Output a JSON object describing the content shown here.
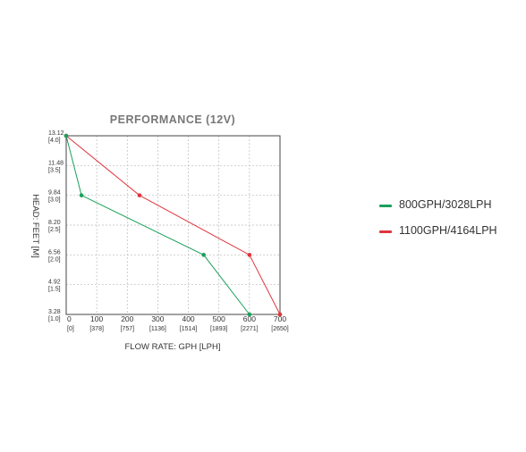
{
  "chart_data": {
    "type": "line",
    "title": "PERFORMANCE (12V)",
    "xlabel": "FLOW RATE: GPH [LPH]",
    "ylabel": "HEAD: FEET [M]",
    "xlim": [
      0,
      700
    ],
    "ylim": [
      3.28,
      13.12
    ],
    "x_ticks": [
      {
        "value": 0,
        "label": "0",
        "sub": "[0]"
      },
      {
        "value": 100,
        "label": "100",
        "sub": "[378]"
      },
      {
        "value": 200,
        "label": "200",
        "sub": "[757]"
      },
      {
        "value": 300,
        "label": "300",
        "sub": "[1136]"
      },
      {
        "value": 400,
        "label": "400",
        "sub": "[1514]"
      },
      {
        "value": 500,
        "label": "500",
        "sub": "[1893]"
      },
      {
        "value": 600,
        "label": "600",
        "sub": "[2271]"
      },
      {
        "value": 700,
        "label": "700",
        "sub": "[2650]"
      }
    ],
    "y_ticks": [
      {
        "value": 3.28,
        "label": "3.28",
        "sub": "[1.0]"
      },
      {
        "value": 4.92,
        "label": "4.92",
        "sub": "[1.5]"
      },
      {
        "value": 6.56,
        "label": "6.56",
        "sub": "[2.0]"
      },
      {
        "value": 8.2,
        "label": "8.20",
        "sub": "[2.5]"
      },
      {
        "value": 9.84,
        "label": "9.84",
        "sub": "[3.0]"
      },
      {
        "value": 11.48,
        "label": "11.48",
        "sub": "[3.5]"
      },
      {
        "value": 13.12,
        "label": "13.12",
        "sub": "[4.0]"
      }
    ],
    "grid": true,
    "legend_position": "right",
    "series": [
      {
        "name": "800GPH/3028LPH",
        "color": "#1aa05a",
        "x": [
          0,
          50,
          450,
          600
        ],
        "y": [
          13.12,
          9.84,
          6.56,
          3.28
        ]
      },
      {
        "name": "1100GPH/4164LPH",
        "color": "#e0343c",
        "x": [
          0,
          240,
          600,
          700
        ],
        "y": [
          13.12,
          9.84,
          6.56,
          3.28
        ]
      }
    ]
  }
}
